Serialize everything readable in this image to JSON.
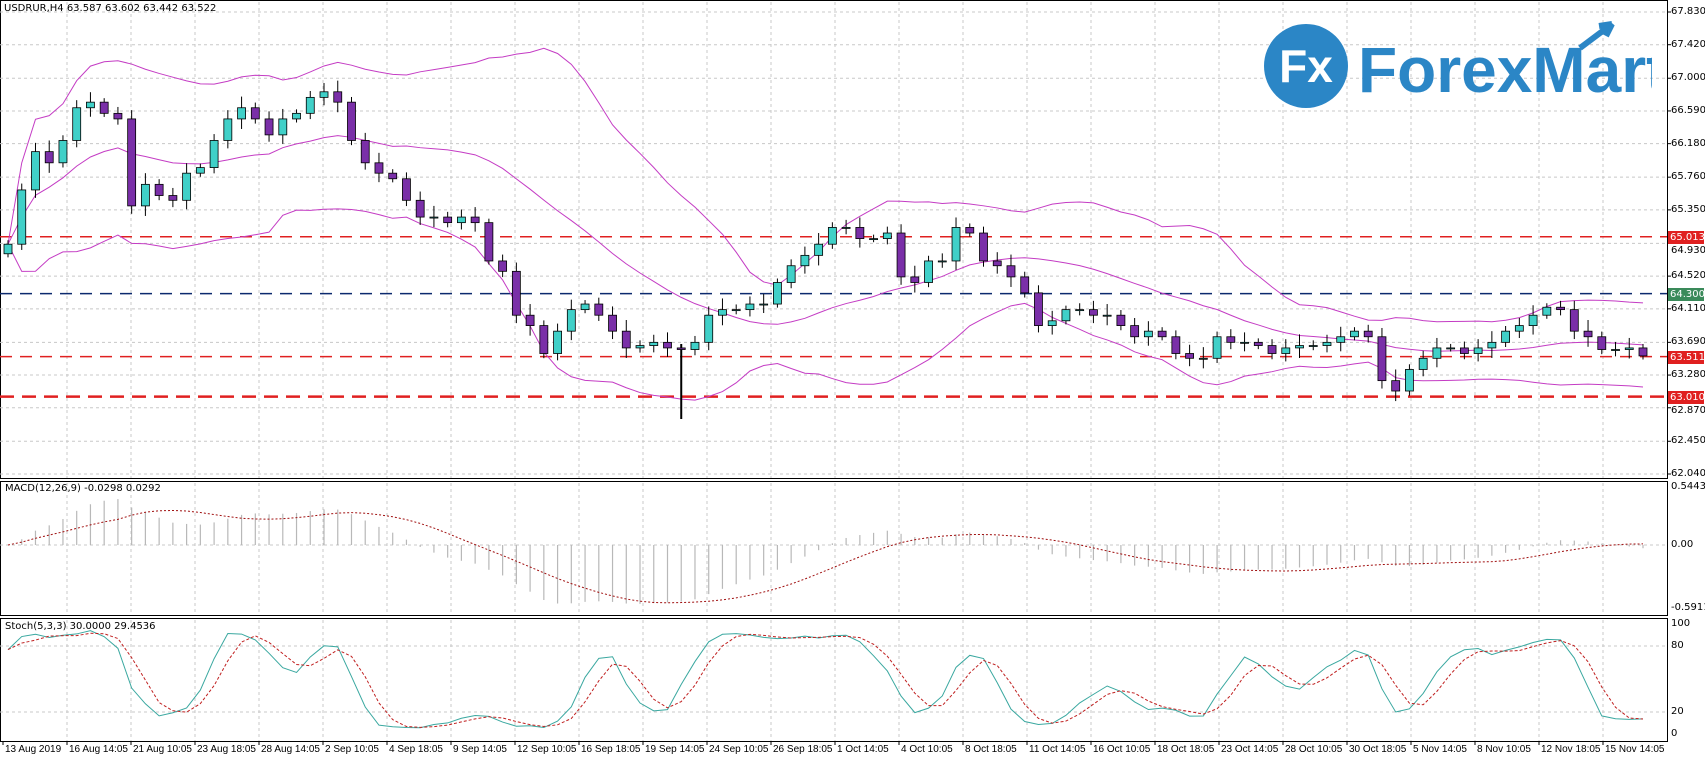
{
  "header": {
    "title": "USDRUR,H4  63.587 63.602 63.442 63.522"
  },
  "logo": {
    "mark": "Fx",
    "text": "ForexMart"
  },
  "colors": {
    "bull": "#40d0c8",
    "bear": "#7a2fa8",
    "band": "#c43cc4",
    "grid": "#c8c8c8",
    "macd_hist": "#b8b8b8",
    "macd_signal": "#a01010",
    "stoch_main": "#3aa8a0",
    "stoch_signal": "#c02020",
    "logo": "#2b86c6"
  },
  "chart_data": [
    {
      "type": "candlestick",
      "title": "USDRUR,H4",
      "ohlc_readout": {
        "open": 63.587,
        "high": 63.602,
        "low": 63.442,
        "close": 63.522
      },
      "ylim": [
        62.04,
        67.83
      ],
      "y_ticks": [
        "67.830",
        "67.420",
        "67.000",
        "66.590",
        "66.180",
        "65.760",
        "65.350",
        "64.930",
        "64.520",
        "64.110",
        "63.690",
        "63.280",
        "62.870",
        "62.450",
        "62.040"
      ],
      "x_ticks": [
        "13 Aug 2019",
        "16 Aug 14:05",
        "21 Aug 10:05",
        "23 Aug 18:05",
        "28 Aug 14:05",
        "2 Sep 10:05",
        "4 Sep 18:05",
        "9 Sep 14:05",
        "12 Sep 10:05",
        "16 Sep 18:05",
        "19 Sep 14:05",
        "24 Sep 10:05",
        "26 Sep 18:05",
        "1 Oct 14:05",
        "4 Oct 10:05",
        "8 Oct 18:05",
        "11 Oct 14:05",
        "16 Oct 10:05",
        "18 Oct 18:05",
        "23 Oct 14:05",
        "28 Oct 10:05",
        "30 Oct 18:05",
        "5 Nov 14:05",
        "8 Nov 10:05",
        "12 Nov 18:05",
        "15 Nov 14:05"
      ],
      "closes": [
        64.92,
        65.6,
        66.08,
        65.94,
        66.22,
        66.63,
        66.7,
        66.56,
        66.49,
        65.4,
        65.67,
        65.53,
        65.47,
        65.81,
        65.88,
        66.22,
        66.49,
        66.63,
        66.49,
        66.29,
        66.49,
        66.56,
        66.76,
        66.83,
        66.7,
        66.22,
        65.94,
        65.81,
        65.74,
        65.47,
        65.26,
        65.26,
        65.19,
        65.26,
        65.19,
        64.71,
        64.58,
        64.03,
        63.9,
        63.55,
        63.83,
        64.1,
        64.17,
        64.03,
        63.83,
        63.62,
        63.65,
        63.69,
        63.62,
        63.6,
        63.69,
        64.03,
        64.1,
        64.1,
        64.17,
        64.17,
        64.44,
        64.65,
        64.78,
        64.92,
        65.13,
        65.13,
        64.99,
        64.99,
        65.06,
        64.51,
        64.44,
        64.71,
        64.71,
        65.13,
        65.06,
        64.71,
        64.65,
        64.51,
        64.31,
        63.9,
        63.96,
        64.1,
        64.1,
        64.03,
        64.03,
        63.9,
        63.76,
        63.83,
        63.76,
        63.55,
        63.49,
        63.49,
        63.76,
        63.69,
        63.69,
        63.65,
        63.55,
        63.62,
        63.65,
        63.65,
        63.69,
        63.76,
        63.83,
        63.76,
        63.21,
        63.08,
        63.35,
        63.49,
        63.62,
        63.62,
        63.55,
        63.62,
        63.69,
        63.83,
        63.9,
        64.03,
        64.13,
        64.1,
        63.83,
        63.76,
        63.6,
        63.6,
        63.62,
        63.52
      ],
      "first_open": 64.8,
      "spike": {
        "index": 49,
        "low": 62.73
      },
      "levels": [
        {
          "price": 65.013,
          "label": "65.013",
          "color": "#e02020",
          "label_bg": "#e02020",
          "style": "dash"
        },
        {
          "price": 64.3,
          "label": "64.300",
          "color": "#0c2a6e",
          "label_bg": "#3a8a5a",
          "style": "dash"
        },
        {
          "price": 63.511,
          "label": "63.511",
          "color": "#e02020",
          "label_bg": "#e02020",
          "style": "dash"
        },
        {
          "price": 63.01,
          "label": "63.010",
          "color": "#e02020",
          "label_bg": "#e02020",
          "style": "thick-dash"
        }
      ],
      "bands": {
        "period": 20,
        "deviation": 2
      }
    },
    {
      "type": "bar",
      "title": "MACD(12,26,9) -0.0298 0.0292",
      "params": [
        12,
        26,
        9
      ],
      "ylim": [
        -0.5911,
        0.5443
      ],
      "y_ticks": [
        "0.5443",
        "0.00",
        "-0.5911"
      ]
    },
    {
      "type": "line",
      "title": "Stoch(5,3,3) 30.0000 29.4536",
      "params": [
        5,
        3,
        3
      ],
      "ylim": [
        0,
        100
      ],
      "y_ticks": [
        "100",
        "80",
        "20",
        "0"
      ]
    }
  ]
}
